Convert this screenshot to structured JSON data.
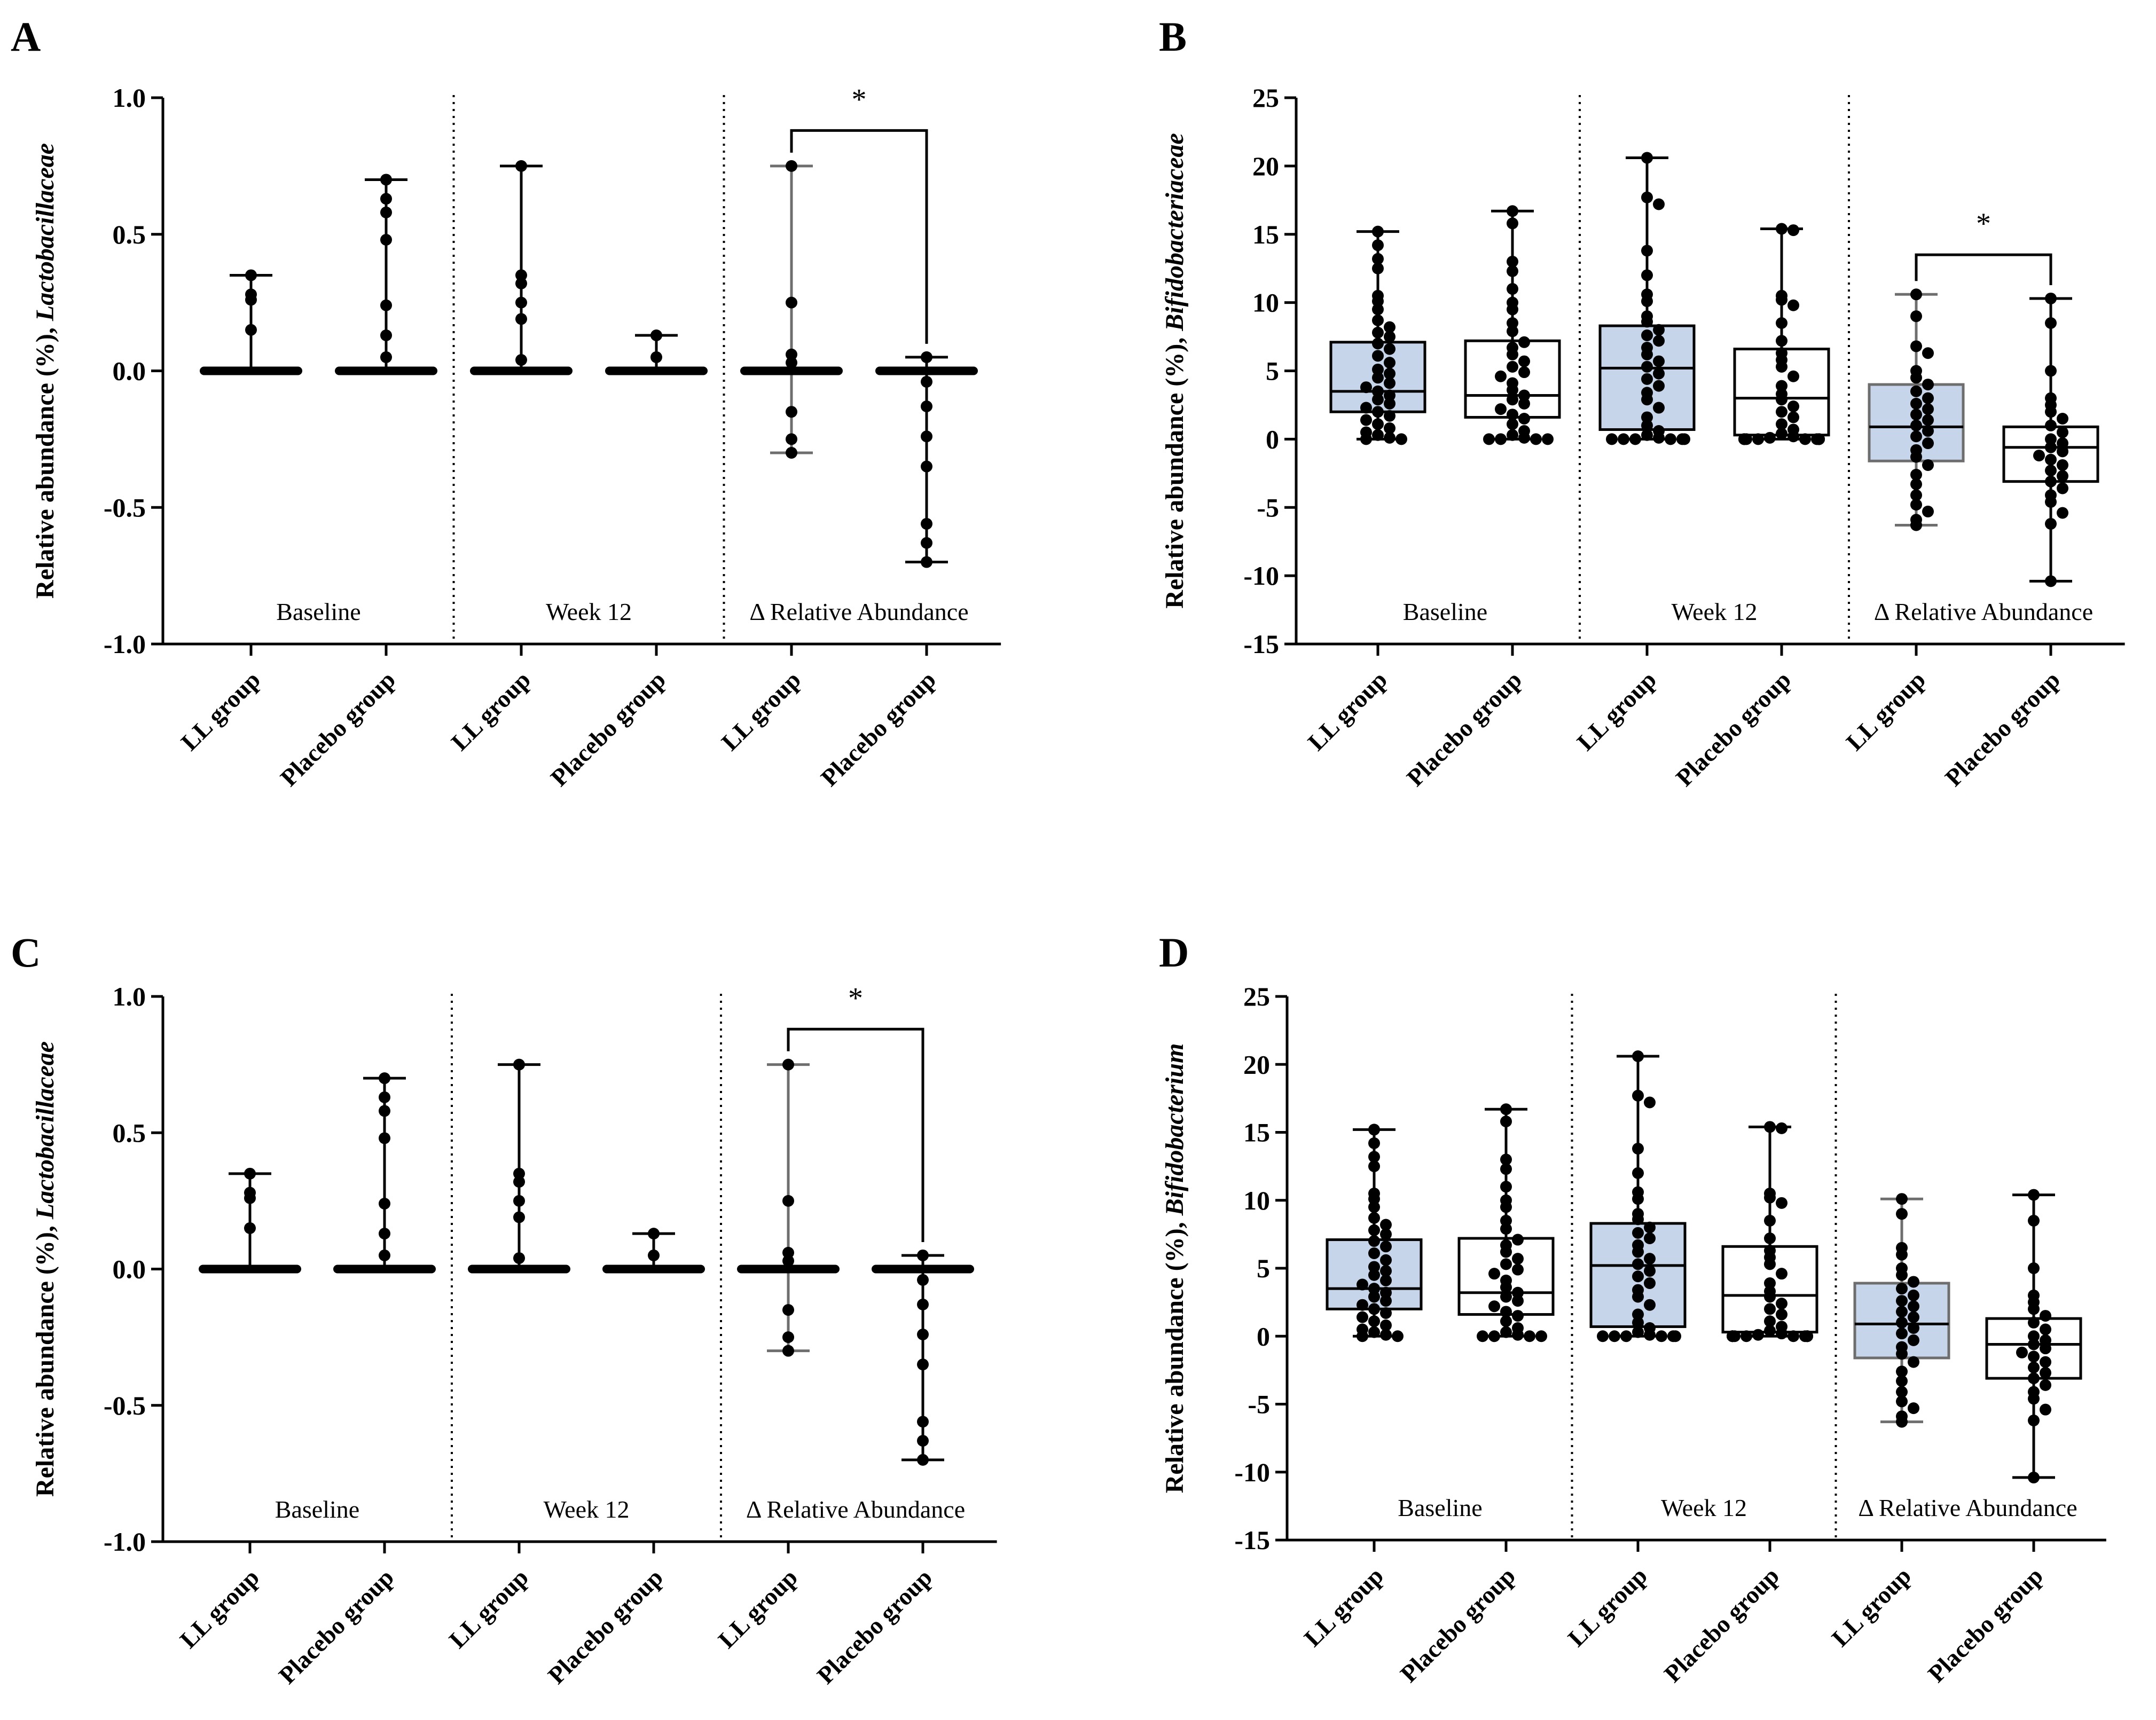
{
  "figure": {
    "panels": [
      "A",
      "B",
      "C",
      "D"
    ]
  },
  "chart_data": [
    {
      "panel": "A",
      "type": "scatter",
      "ylabel_prefix": "Relative abundance (%), ",
      "ylabel_taxon": "Lactobacillaceae",
      "ylim": [
        -1.0,
        1.0
      ],
      "yticks": [
        "1.0",
        "0.5",
        "0.0",
        "-0.5",
        "-1.0"
      ],
      "ytick_values": [
        1.0,
        0.5,
        0.0,
        -0.5,
        -1.0
      ],
      "sections": [
        "Baseline",
        "Week 12",
        "Δ Relative Abundance"
      ],
      "categories": [
        "LL group",
        "Placebo group",
        "LL group",
        "Placebo group",
        "LL group",
        "Placebo group"
      ],
      "boxes": false,
      "significance": {
        "from": 4,
        "to": 5,
        "label": "*",
        "y": 0.88
      },
      "series": [
        {
          "name": "Baseline LL group",
          "min": 0,
          "max": 0.35,
          "box": [
            0,
            0,
            0
          ],
          "points": [
            0.35,
            0.28,
            0.26,
            0.15
          ]
        },
        {
          "name": "Baseline Placebo group",
          "min": 0,
          "max": 0.7,
          "box": [
            0,
            0,
            0
          ],
          "points": [
            0.7,
            0.63,
            0.58,
            0.48,
            0.24,
            0.13,
            0.05
          ]
        },
        {
          "name": "Week 12 LL group",
          "min": 0,
          "max": 0.75,
          "box": [
            0,
            0,
            0
          ],
          "points": [
            0.75,
            0.35,
            0.32,
            0.25,
            0.19,
            0.04
          ]
        },
        {
          "name": "Week 12 Placebo group",
          "min": 0,
          "max": 0.13,
          "box": [
            0,
            0,
            0
          ],
          "points": [
            0.13,
            0.05
          ]
        },
        {
          "name": "Δ LL group",
          "min": -0.3,
          "max": 0.75,
          "box": [
            0,
            0,
            0
          ],
          "points": [
            0.75,
            0.25,
            0.06,
            0.03,
            -0.15,
            -0.25,
            -0.3
          ]
        },
        {
          "name": "Δ Placebo group",
          "min": -0.7,
          "max": 0.05,
          "box": [
            0,
            0,
            0
          ],
          "points": [
            0.05,
            -0.04,
            -0.13,
            -0.24,
            -0.35,
            -0.56,
            -0.63,
            -0.7
          ]
        }
      ]
    },
    {
      "panel": "B",
      "type": "box",
      "ylabel_prefix": "Relative abundance (%), ",
      "ylabel_taxon": "Bifidobacteriaceae",
      "ylim": [
        -15,
        25
      ],
      "yticks": [
        "25",
        "20",
        "15",
        "10",
        "5",
        "0",
        "-5",
        "-10",
        "-15"
      ],
      "ytick_values": [
        25,
        20,
        15,
        10,
        5,
        0,
        -5,
        -10,
        -15
      ],
      "sections": [
        "Baseline",
        "Week 12",
        "Δ Relative Abundance"
      ],
      "categories": [
        "LL group",
        "Placebo group",
        "LL group",
        "Placebo group",
        "LL group",
        "Placebo group"
      ],
      "boxes": true,
      "significance": {
        "from": 4,
        "to": 5,
        "label": "*",
        "y": 13.5
      },
      "series": [
        {
          "name": "Baseline LL group",
          "min": 0,
          "max": 15.2,
          "box": [
            2.0,
            3.5,
            7.1
          ],
          "points": [
            15.2,
            14.2,
            13.2,
            12.5,
            10.5,
            10.1,
            9.5,
            8.7,
            8.2,
            7.8,
            7.5,
            7.0,
            6.6,
            6.1,
            5.6,
            5.1,
            4.8,
            4.5,
            4.1,
            3.8,
            3.5,
            3.2,
            2.9,
            2.6,
            2.3,
            2.0,
            1.7,
            1.4,
            1.1,
            0.8,
            0.5,
            0.3,
            0.1,
            0.0,
            0.0
          ]
        },
        {
          "name": "Baseline Placebo group",
          "min": 0,
          "max": 16.7,
          "box": [
            1.6,
            3.2,
            7.2
          ],
          "points": [
            16.7,
            15.8,
            13.0,
            12.3,
            11.0,
            10.0,
            9.5,
            8.5,
            7.9,
            7.1,
            6.7,
            6.2,
            5.7,
            5.3,
            4.9,
            4.6,
            4.1,
            3.6,
            3.2,
            2.9,
            2.6,
            2.2,
            1.8,
            1.5,
            1.1,
            0.6,
            0.3,
            0.1,
            0.0,
            0.0,
            0.0,
            0.0
          ]
        },
        {
          "name": "Week 12 LL group",
          "min": 0,
          "max": 20.6,
          "box": [
            0.7,
            5.2,
            8.3
          ],
          "points": [
            20.6,
            17.7,
            17.2,
            13.8,
            12.0,
            10.6,
            10.1,
            9.0,
            8.6,
            8.0,
            7.6,
            7.2,
            6.7,
            6.2,
            5.7,
            5.3,
            4.8,
            4.4,
            3.9,
            3.4,
            2.9,
            2.3,
            1.6,
            1.0,
            0.6,
            0.3,
            0.1,
            0.0,
            0.0,
            0.0,
            0.0,
            0.0,
            0.0
          ]
        },
        {
          "name": "Week 12 Placebo group",
          "min": 0,
          "max": 15.4,
          "box": [
            0.3,
            3.0,
            6.6
          ],
          "points": [
            15.4,
            15.3,
            10.5,
            10.2,
            9.8,
            8.5,
            7.2,
            6.3,
            5.8,
            5.3,
            4.6,
            3.9,
            3.3,
            2.9,
            2.4,
            2.0,
            1.6,
            1.1,
            0.7,
            0.4,
            0.2,
            0.1,
            0.0,
            0.0,
            0.0,
            0.0,
            0.0,
            0.0,
            0.0,
            0.0,
            0.0,
            0.0
          ]
        },
        {
          "name": "Δ LL group",
          "min": -6.3,
          "max": 10.6,
          "box": [
            -1.6,
            0.9,
            4.0
          ],
          "points": [
            10.6,
            9.0,
            6.8,
            6.3,
            5.0,
            4.5,
            4.0,
            3.5,
            3.0,
            2.6,
            2.2,
            1.8,
            1.4,
            1.0,
            0.6,
            0.2,
            -0.3,
            -0.8,
            -1.3,
            -1.9,
            -2.6,
            -3.3,
            -4.1,
            -4.8,
            -5.3,
            -5.9,
            -6.3
          ]
        },
        {
          "name": "Δ Placebo group",
          "min": -10.4,
          "max": 10.3,
          "box": [
            -3.1,
            -0.6,
            0.9
          ],
          "points": [
            10.3,
            8.5,
            5.0,
            3.0,
            2.5,
            2.0,
            1.5,
            1.0,
            0.5,
            0.0,
            -0.3,
            -0.6,
            -0.9,
            -1.2,
            -1.5,
            -1.9,
            -2.3,
            -2.7,
            -3.1,
            -3.6,
            -4.1,
            -4.6,
            -5.4,
            -6.2,
            -10.4
          ]
        }
      ]
    },
    {
      "panel": "C",
      "type": "scatter",
      "ylabel_prefix": "Relative abundance (%), ",
      "ylabel_taxon": "Lactobacillaceae",
      "ylim": [
        -1.0,
        1.0
      ],
      "yticks": [
        "1.0",
        "0.5",
        "0.0",
        "-0.5",
        "-1.0"
      ],
      "ytick_values": [
        1.0,
        0.5,
        0.0,
        -0.5,
        -1.0
      ],
      "sections": [
        "Baseline",
        "Week 12",
        "Δ Relative Abundance"
      ],
      "categories": [
        "LL group",
        "Placebo group",
        "LL group",
        "Placebo group",
        "LL group",
        "Placebo group"
      ],
      "boxes": false,
      "significance": {
        "from": 4,
        "to": 5,
        "label": "*",
        "y": 0.88
      },
      "series": [
        {
          "name": "Baseline LL group",
          "min": 0,
          "max": 0.35,
          "box": [
            0,
            0,
            0
          ],
          "points": [
            0.35,
            0.28,
            0.26,
            0.15
          ]
        },
        {
          "name": "Baseline Placebo group",
          "min": 0,
          "max": 0.7,
          "box": [
            0,
            0,
            0
          ],
          "points": [
            0.7,
            0.63,
            0.58,
            0.48,
            0.24,
            0.13,
            0.05
          ]
        },
        {
          "name": "Week 12 LL group",
          "min": 0,
          "max": 0.75,
          "box": [
            0,
            0,
            0
          ],
          "points": [
            0.75,
            0.35,
            0.32,
            0.25,
            0.19,
            0.04
          ]
        },
        {
          "name": "Week 12 Placebo group",
          "min": 0,
          "max": 0.13,
          "box": [
            0,
            0,
            0
          ],
          "points": [
            0.13,
            0.05
          ]
        },
        {
          "name": "Δ LL group",
          "min": -0.3,
          "max": 0.75,
          "box": [
            0,
            0,
            0
          ],
          "points": [
            0.75,
            0.25,
            0.06,
            0.03,
            -0.15,
            -0.25,
            -0.3
          ]
        },
        {
          "name": "Δ Placebo group",
          "min": -0.7,
          "max": 0.05,
          "box": [
            0,
            0,
            0
          ],
          "points": [
            0.05,
            -0.04,
            -0.13,
            -0.24,
            -0.35,
            -0.56,
            -0.63,
            -0.7
          ]
        }
      ]
    },
    {
      "panel": "D",
      "type": "box",
      "ylabel_prefix": "Relative abundance (%), ",
      "ylabel_taxon": "Bifidobacterium",
      "ylim": [
        -15,
        25
      ],
      "yticks": [
        "25",
        "20",
        "15",
        "10",
        "5",
        "0",
        "-5",
        "-10",
        "-15"
      ],
      "ytick_values": [
        25,
        20,
        15,
        10,
        5,
        0,
        -5,
        -10,
        -15
      ],
      "sections": [
        "Baseline",
        "Week 12",
        "Δ Relative Abundance"
      ],
      "categories": [
        "LL group",
        "Placebo group",
        "LL group",
        "Placebo group",
        "LL group",
        "Placebo group"
      ],
      "boxes": true,
      "significance": null,
      "series": [
        {
          "name": "Baseline LL group",
          "min": 0,
          "max": 15.2,
          "box": [
            2.0,
            3.5,
            7.1
          ],
          "points": [
            15.2,
            14.2,
            13.2,
            12.5,
            10.5,
            10.1,
            9.5,
            8.7,
            8.2,
            7.8,
            7.5,
            7.0,
            6.6,
            6.1,
            5.6,
            5.1,
            4.8,
            4.5,
            4.1,
            3.8,
            3.5,
            3.2,
            2.9,
            2.6,
            2.3,
            2.0,
            1.7,
            1.4,
            1.1,
            0.8,
            0.5,
            0.3,
            0.1,
            0.0,
            0.0
          ]
        },
        {
          "name": "Baseline Placebo group",
          "min": 0,
          "max": 16.7,
          "box": [
            1.6,
            3.2,
            7.2
          ],
          "points": [
            16.7,
            15.8,
            13.0,
            12.3,
            11.0,
            10.0,
            9.5,
            8.5,
            7.9,
            7.1,
            6.7,
            6.2,
            5.7,
            5.3,
            4.9,
            4.6,
            4.1,
            3.6,
            3.2,
            2.9,
            2.6,
            2.2,
            1.8,
            1.5,
            1.1,
            0.6,
            0.3,
            0.1,
            0.0,
            0.0,
            0.0,
            0.0
          ]
        },
        {
          "name": "Week 12 LL group",
          "min": 0,
          "max": 20.6,
          "box": [
            0.7,
            5.2,
            8.3
          ],
          "points": [
            20.6,
            17.7,
            17.2,
            13.8,
            12.0,
            10.6,
            10.1,
            9.0,
            8.6,
            8.0,
            7.6,
            7.2,
            6.7,
            6.2,
            5.7,
            5.3,
            4.8,
            4.4,
            3.9,
            3.4,
            2.9,
            2.3,
            1.6,
            1.0,
            0.6,
            0.3,
            0.1,
            0.0,
            0.0,
            0.0,
            0.0,
            0.0,
            0.0
          ]
        },
        {
          "name": "Week 12 Placebo group",
          "min": 0,
          "max": 15.4,
          "box": [
            0.3,
            3.0,
            6.6
          ],
          "points": [
            15.4,
            15.3,
            10.5,
            10.2,
            9.8,
            8.5,
            7.2,
            6.3,
            5.8,
            5.3,
            4.6,
            3.9,
            3.3,
            2.9,
            2.4,
            2.0,
            1.6,
            1.1,
            0.7,
            0.4,
            0.2,
            0.1,
            0.0,
            0.0,
            0.0,
            0.0,
            0.0,
            0.0,
            0.0,
            0.0,
            0.0,
            0.0
          ]
        },
        {
          "name": "Δ LL group",
          "min": -6.3,
          "max": 10.1,
          "box": [
            -1.6,
            0.9,
            3.9
          ],
          "points": [
            10.1,
            9.0,
            6.5,
            6.0,
            5.0,
            4.5,
            4.0,
            3.5,
            3.0,
            2.6,
            2.2,
            1.8,
            1.4,
            1.0,
            0.6,
            0.2,
            -0.3,
            -0.8,
            -1.3,
            -1.9,
            -2.6,
            -3.3,
            -4.1,
            -4.8,
            -5.3,
            -5.9,
            -6.3
          ]
        },
        {
          "name": "Δ Placebo group",
          "min": -10.4,
          "max": 10.4,
          "box": [
            -3.1,
            -0.6,
            1.3
          ],
          "points": [
            10.4,
            8.5,
            5.0,
            3.0,
            2.5,
            2.0,
            1.5,
            1.0,
            0.5,
            0.0,
            -0.3,
            -0.6,
            -0.9,
            -1.2,
            -1.5,
            -1.9,
            -2.3,
            -2.7,
            -3.1,
            -3.6,
            -4.1,
            -4.6,
            -5.4,
            -6.2,
            -10.4
          ]
        }
      ]
    }
  ]
}
